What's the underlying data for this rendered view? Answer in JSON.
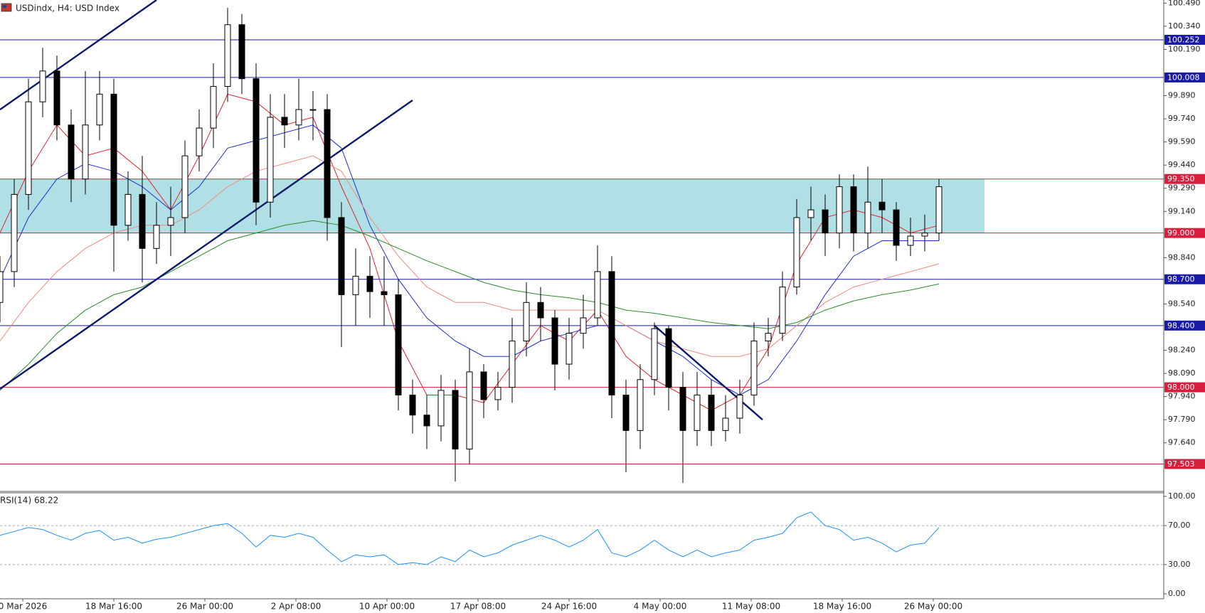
{
  "chart_data": [
    {
      "type": "candlestick",
      "title": "USDindx, H4:  USD Index",
      "x": [
        0,
        5,
        10,
        15,
        20,
        25,
        30,
        35,
        40,
        45,
        50,
        55,
        60,
        65,
        70,
        75,
        80,
        85,
        90,
        95,
        100,
        105,
        110,
        115,
        120,
        125,
        130,
        135,
        140,
        145,
        150,
        155,
        160,
        165,
        170,
        175,
        180,
        185,
        190,
        195,
        200,
        205,
        210,
        215,
        220,
        225,
        230,
        235,
        240,
        245,
        250,
        255,
        260,
        265,
        270,
        275,
        280,
        285,
        290,
        295,
        300,
        305,
        310,
        315,
        320,
        325,
        330
      ],
      "open": [
        98.55,
        98.75,
        99.25,
        99.85,
        100.05,
        99.7,
        99.35,
        99.7,
        99.9,
        99.05,
        99.25,
        98.9,
        99.05,
        99.1,
        99.5,
        99.68,
        99.95,
        100.35,
        100.0,
        99.2,
        99.75,
        99.7,
        99.8,
        99.8,
        99.1,
        98.6,
        98.72,
        98.62,
        98.6,
        97.95,
        97.82,
        97.75,
        97.98,
        97.6,
        98.1,
        97.92,
        98.0,
        98.3,
        98.55,
        98.45,
        98.15,
        98.35,
        98.45,
        98.75,
        97.95,
        97.72,
        98.05,
        98.38,
        98.0,
        97.72,
        97.95,
        97.72,
        97.8,
        97.95,
        98.3,
        98.35,
        98.65,
        99.1,
        99.15,
        99.0,
        99.3,
        99.0,
        99.2,
        99.15,
        98.92,
        98.98,
        99.0
      ],
      "high": [
        98.85,
        99.35,
        100.0,
        100.2,
        100.15,
        99.8,
        100.05,
        100.05,
        100.0,
        99.4,
        99.5,
        99.2,
        99.3,
        99.6,
        99.8,
        100.1,
        100.46,
        100.42,
        100.1,
        99.9,
        99.9,
        100.0,
        99.92,
        99.9,
        99.2,
        98.9,
        98.85,
        98.85,
        98.7,
        98.05,
        97.95,
        98.08,
        98.05,
        98.25,
        98.15,
        98.1,
        98.45,
        98.68,
        98.65,
        98.5,
        98.45,
        98.6,
        98.92,
        98.85,
        98.05,
        98.15,
        98.42,
        98.4,
        98.1,
        98.1,
        98.05,
        97.95,
        98.05,
        98.42,
        98.45,
        98.75,
        99.22,
        99.3,
        99.25,
        99.38,
        99.38,
        99.43,
        99.35,
        99.2,
        99.1,
        99.12,
        99.35
      ],
      "low": [
        98.42,
        98.65,
        99.15,
        99.75,
        99.6,
        99.2,
        99.25,
        99.6,
        98.75,
        98.95,
        98.68,
        98.8,
        98.85,
        99.0,
        99.4,
        99.55,
        99.85,
        99.9,
        99.05,
        99.1,
        99.55,
        99.6,
        99.6,
        98.95,
        98.26,
        98.4,
        98.45,
        98.4,
        97.85,
        97.7,
        97.6,
        97.65,
        97.39,
        97.5,
        97.8,
        97.85,
        97.9,
        98.2,
        98.3,
        97.98,
        98.05,
        98.25,
        98.4,
        97.8,
        97.45,
        97.6,
        97.95,
        97.85,
        97.38,
        97.62,
        97.62,
        97.65,
        97.7,
        97.88,
        98.2,
        98.3,
        98.6,
        98.95,
        98.85,
        98.9,
        98.88,
        98.9,
        99.0,
        98.82,
        98.85,
        98.88,
        98.95
      ],
      "close": [
        98.75,
        99.25,
        99.85,
        100.05,
        99.7,
        99.35,
        99.7,
        99.9,
        99.05,
        99.25,
        98.9,
        99.05,
        99.1,
        99.5,
        99.68,
        99.95,
        100.35,
        100.0,
        99.2,
        99.75,
        99.7,
        99.8,
        99.8,
        99.1,
        98.6,
        98.72,
        98.62,
        98.6,
        97.95,
        97.82,
        97.75,
        97.98,
        97.6,
        98.1,
        97.92,
        98.0,
        98.3,
        98.55,
        98.45,
        98.15,
        98.35,
        98.45,
        98.75,
        97.95,
        97.72,
        98.05,
        98.38,
        98.0,
        97.72,
        97.95,
        97.72,
        97.8,
        97.95,
        98.3,
        98.35,
        98.65,
        99.1,
        99.15,
        99.0,
        99.3,
        99.0,
        99.2,
        99.15,
        98.92,
        98.98,
        99.0,
        99.3
      ],
      "series": [
        {
          "color": "#e8232b",
          "x": [
            0,
            10,
            20,
            30,
            40,
            50,
            60,
            70,
            80,
            90,
            100,
            110,
            120,
            130,
            140,
            150,
            160,
            170,
            180,
            190,
            200,
            210,
            220,
            230,
            240,
            250,
            260,
            270,
            280,
            290,
            300,
            310,
            320,
            330
          ],
          "values": [
            99.0,
            99.4,
            99.7,
            99.5,
            99.55,
            99.4,
            99.15,
            99.5,
            99.9,
            99.85,
            99.7,
            99.75,
            99.3,
            98.9,
            98.3,
            97.95,
            97.95,
            97.9,
            98.15,
            98.4,
            98.3,
            98.5,
            98.2,
            98.05,
            97.95,
            97.85,
            97.95,
            98.25,
            98.8,
            99.1,
            99.15,
            99.1,
            99.0,
            99.05
          ]
        },
        {
          "color": "#1d2fd6",
          "x": [
            0,
            10,
            20,
            30,
            40,
            50,
            60,
            70,
            80,
            90,
            100,
            110,
            120,
            130,
            140,
            150,
            160,
            170,
            180,
            190,
            200,
            210,
            220,
            230,
            240,
            250,
            260,
            270,
            280,
            290,
            300,
            310,
            320,
            330
          ],
          "values": [
            98.7,
            99.1,
            99.35,
            99.45,
            99.4,
            99.3,
            99.15,
            99.3,
            99.55,
            99.6,
            99.65,
            99.7,
            99.55,
            99.05,
            98.7,
            98.45,
            98.3,
            98.2,
            98.2,
            98.3,
            98.35,
            98.4,
            98.4,
            98.3,
            98.2,
            98.05,
            97.95,
            98.05,
            98.3,
            98.6,
            98.85,
            98.95,
            98.95,
            98.95
          ]
        },
        {
          "color": "#f28a7e",
          "x": [
            0,
            10,
            20,
            30,
            40,
            50,
            60,
            70,
            80,
            90,
            100,
            110,
            120,
            130,
            140,
            150,
            160,
            170,
            180,
            190,
            200,
            210,
            220,
            230,
            240,
            250,
            260,
            270,
            280,
            290,
            300,
            310,
            320,
            330
          ],
          "values": [
            98.3,
            98.55,
            98.75,
            98.9,
            99.0,
            99.05,
            99.05,
            99.15,
            99.3,
            99.4,
            99.45,
            99.5,
            99.4,
            99.1,
            98.85,
            98.65,
            98.55,
            98.55,
            98.5,
            98.5,
            98.5,
            98.5,
            98.4,
            98.3,
            98.25,
            98.2,
            98.2,
            98.25,
            98.4,
            98.55,
            98.65,
            98.7,
            98.75,
            98.8
          ]
        },
        {
          "color": "#2e8b2e",
          "x": [
            0,
            10,
            20,
            30,
            40,
            50,
            60,
            70,
            80,
            90,
            100,
            110,
            120,
            130,
            140,
            150,
            160,
            170,
            180,
            190,
            200,
            210,
            220,
            230,
            240,
            250,
            260,
            270,
            280,
            290,
            300,
            310,
            320,
            330
          ],
          "values": [
            97.98,
            98.15,
            98.35,
            98.5,
            98.6,
            98.65,
            98.75,
            98.85,
            98.95,
            99.0,
            99.05,
            99.08,
            99.05,
            98.98,
            98.9,
            98.82,
            98.75,
            98.68,
            98.63,
            98.6,
            98.58,
            98.55,
            98.5,
            98.48,
            98.45,
            98.42,
            98.4,
            98.38,
            98.42,
            98.5,
            98.56,
            98.6,
            98.63,
            98.67
          ]
        }
      ],
      "levels": [
        {
          "value": 100.252,
          "label": "100.252",
          "color": "#1a1aa8"
        },
        {
          "value": 100.008,
          "label": "100.008",
          "color": "#1a1aa8"
        },
        {
          "value": 99.35,
          "label": "99.350",
          "color": "#d81e3c"
        },
        {
          "value": 99.0,
          "label": "99.000",
          "color": "#d81e3c"
        },
        {
          "value": 98.7,
          "label": "98.700",
          "color": "#1a1aa8"
        },
        {
          "value": 98.4,
          "label": "98.400",
          "color": "#1a1aa8"
        },
        {
          "value": 98.0,
          "label": "98.000",
          "color": "#d81e3c"
        },
        {
          "value": 97.503,
          "label": "97.503",
          "color": "#d81e3c"
        }
      ],
      "zone": {
        "from": 99.0,
        "to": 99.35,
        "x_end": 346,
        "color": "#b0e0e6"
      },
      "trendlines": [
        {
          "x": [
            0,
            55
          ],
          "y": [
            99.8,
            100.51
          ],
          "color": "#0d1a6b"
        },
        {
          "x": [
            0,
            145
          ],
          "y": [
            97.99,
            99.86
          ],
          "color": "#0d1a6b"
        },
        {
          "x": [
            230,
            268
          ],
          "y": [
            98.4,
            97.79
          ],
          "color": "#0d1a6b"
        }
      ],
      "xlim": [
        0,
        409
      ],
      "ylim": [
        97.33,
        100.51
      ],
      "yticks": [
        {
          "value": 100.49,
          "label": "100.490"
        },
        {
          "value": 100.34,
          "label": "100.340"
        },
        {
          "value": 100.19,
          "label": "100.190"
        },
        {
          "value": 99.89,
          "label": "99.890"
        },
        {
          "value": 99.74,
          "label": "99.740"
        },
        {
          "value": 99.59,
          "label": "99.590"
        },
        {
          "value": 99.44,
          "label": "99.440"
        },
        {
          "value": 99.29,
          "label": "99.290"
        },
        {
          "value": 99.14,
          "label": "99.140"
        },
        {
          "value": 98.84,
          "label": "98.840"
        },
        {
          "value": 98.54,
          "label": "98.540"
        },
        {
          "value": 98.24,
          "label": "98.240"
        },
        {
          "value": 98.09,
          "label": "98.090"
        },
        {
          "value": 97.94,
          "label": "97.940"
        },
        {
          "value": 97.79,
          "label": "97.790"
        },
        {
          "value": 97.64,
          "label": "97.640"
        }
      ],
      "xticks": [
        {
          "value": 8,
          "label": "0 Mar 2026"
        },
        {
          "value": 40,
          "label": "18 Mar 16:00"
        },
        {
          "value": 72,
          "label": "26 Mar 00:00"
        },
        {
          "value": 104,
          "label": "2 Apr 08:00"
        },
        {
          "value": 136,
          "label": "10 Apr 00:00"
        },
        {
          "value": 168,
          "label": "17 Apr 08:00"
        },
        {
          "value": 200,
          "label": "24 Apr 16:00"
        },
        {
          "value": 232,
          "label": "4 May 00:00"
        },
        {
          "value": 264,
          "label": "11 May 08:00"
        },
        {
          "value": 296,
          "label": "18 May 16:00"
        },
        {
          "value": 328,
          "label": "26 May 00:00"
        }
      ]
    },
    {
      "type": "line",
      "title": "RSI(14) 68.22",
      "color": "#1e90ff",
      "x": [
        0,
        5,
        10,
        15,
        20,
        25,
        30,
        35,
        40,
        45,
        50,
        55,
        60,
        65,
        70,
        75,
        80,
        85,
        90,
        95,
        100,
        105,
        110,
        115,
        120,
        125,
        130,
        135,
        140,
        145,
        150,
        155,
        160,
        165,
        170,
        175,
        180,
        185,
        190,
        195,
        200,
        205,
        210,
        215,
        220,
        225,
        230,
        235,
        240,
        245,
        250,
        255,
        260,
        265,
        270,
        275,
        280,
        285,
        290,
        295,
        300,
        305,
        310,
        315,
        320,
        325,
        330
      ],
      "values": [
        60,
        64,
        68,
        66,
        60,
        55,
        62,
        65,
        55,
        58,
        52,
        56,
        58,
        62,
        66,
        70,
        72,
        62,
        48,
        60,
        58,
        62,
        58,
        45,
        33,
        40,
        38,
        40,
        30,
        32,
        30,
        38,
        33,
        45,
        38,
        42,
        50,
        55,
        60,
        55,
        48,
        55,
        66,
        42,
        38,
        45,
        55,
        45,
        38,
        45,
        38,
        42,
        45,
        55,
        58,
        62,
        78,
        84,
        70,
        66,
        55,
        58,
        52,
        43,
        50,
        52,
        68
      ],
      "levels": [
        30,
        70
      ],
      "xlim": [
        0,
        409
      ],
      "ylim": [
        -3.6,
        103.6
      ],
      "yticks": [
        {
          "value": 100,
          "label": "100.00"
        },
        {
          "value": 70,
          "label": "70.00"
        },
        {
          "value": 30,
          "label": "30.00"
        },
        {
          "value": 0,
          "label": "0.00"
        }
      ]
    }
  ]
}
